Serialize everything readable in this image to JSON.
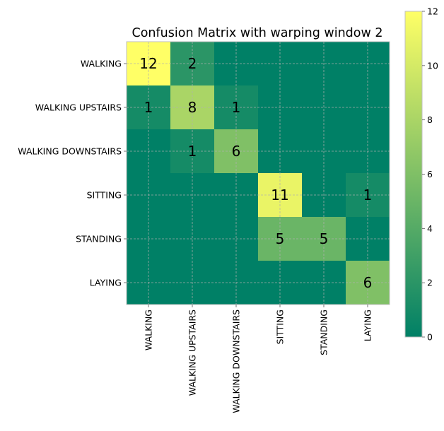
{
  "chart_data": {
    "type": "heatmap",
    "title": "Confusion Matrix with warping window 2",
    "xlabel": "",
    "ylabel": "",
    "row_labels": [
      "WALKING",
      "WALKING UPSTAIRS",
      "WALKING DOWNSTAIRS",
      "SITTING",
      "STANDING",
      "LAYING"
    ],
    "col_labels": [
      "WALKING",
      "WALKING UPSTAIRS",
      "WALKING DOWNSTAIRS",
      "SITTING",
      "STANDING",
      "LAYING"
    ],
    "matrix": [
      [
        12,
        2,
        0,
        0,
        0,
        0
      ],
      [
        1,
        8,
        1,
        0,
        0,
        0
      ],
      [
        0,
        1,
        6,
        0,
        0,
        0
      ],
      [
        0,
        0,
        0,
        11,
        0,
        1
      ],
      [
        0,
        0,
        0,
        5,
        5,
        0
      ],
      [
        0,
        0,
        0,
        0,
        0,
        6
      ]
    ],
    "show_zero_labels": false,
    "colormap": "summer",
    "colormap_colors": [
      "#008066",
      "#ffff66"
    ],
    "colorbar": {
      "range": [
        0,
        12
      ],
      "ticks": [
        0,
        2,
        4,
        6,
        8,
        10,
        12
      ]
    },
    "grid": true,
    "grid_color": "#b0b0b0"
  }
}
